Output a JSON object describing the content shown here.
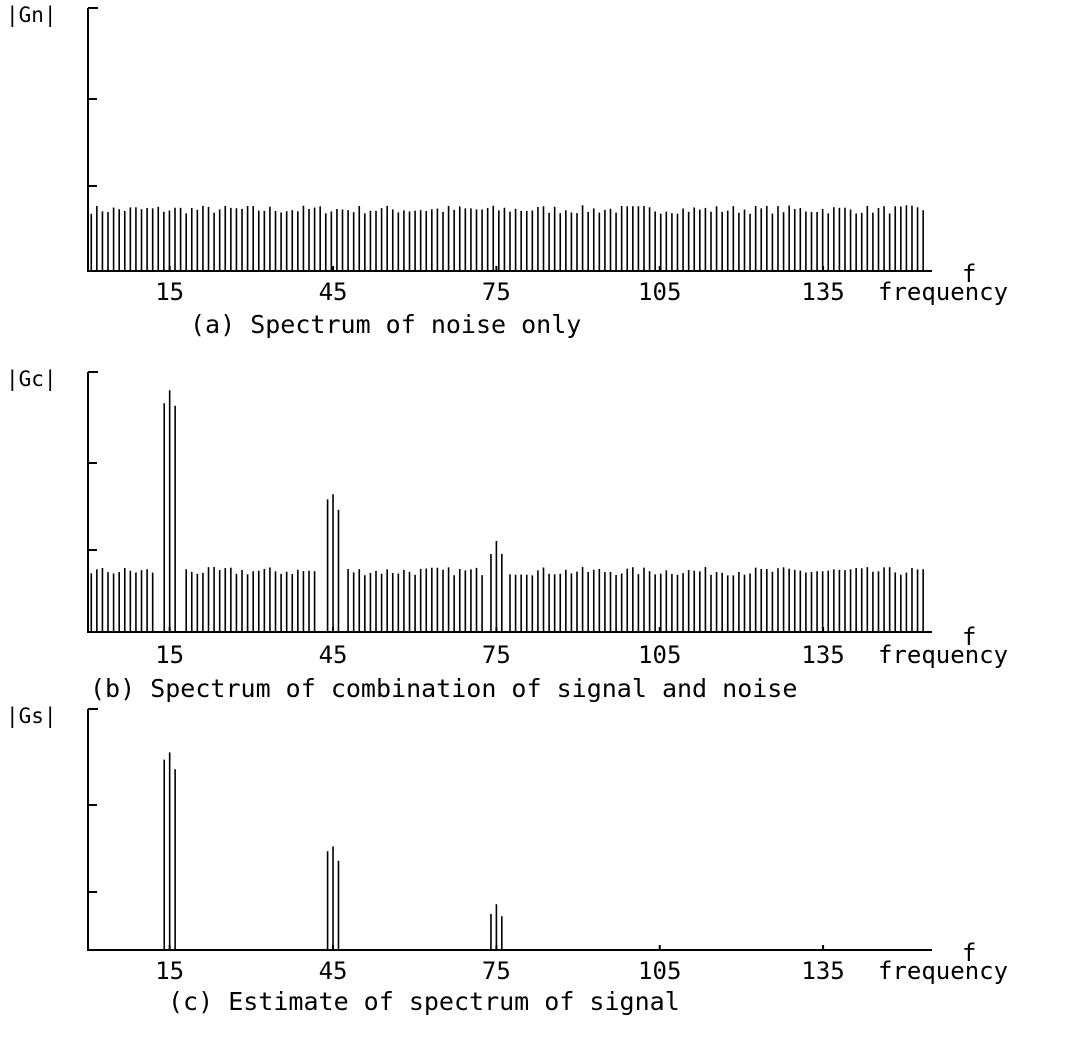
{
  "chart_data": [
    {
      "type": "bar",
      "ylabel": "|Gn|",
      "xlabel": "frequency",
      "axis_letter": "f",
      "xticks": [
        15,
        45,
        75,
        105,
        135
      ],
      "xlim": [
        0,
        155
      ],
      "ylim": [
        0,
        1.0
      ],
      "caption": "(a) Spectrum of noise only",
      "noise_level": 0.25,
      "peaks": []
    },
    {
      "type": "bar",
      "ylabel": "|Gc|",
      "xlabel": "frequency",
      "axis_letter": "f",
      "xticks": [
        15,
        45,
        75,
        105,
        135
      ],
      "xlim": [
        0,
        155
      ],
      "ylim": [
        0,
        1.0
      ],
      "caption": "(b) Spectrum of combination of signal and noise",
      "noise_level": 0.25,
      "peaks": [
        {
          "x": 14,
          "y": 0.88
        },
        {
          "x": 15,
          "y": 0.93
        },
        {
          "x": 16,
          "y": 0.87
        },
        {
          "x": 44,
          "y": 0.51
        },
        {
          "x": 45,
          "y": 0.53
        },
        {
          "x": 46,
          "y": 0.47
        },
        {
          "x": 74,
          "y": 0.3
        },
        {
          "x": 75,
          "y": 0.35
        },
        {
          "x": 76,
          "y": 0.3
        }
      ]
    },
    {
      "type": "bar",
      "ylabel": "|Gs|",
      "xlabel": "frequency",
      "axis_letter": "f",
      "xticks": [
        15,
        45,
        75,
        105,
        135
      ],
      "xlim": [
        0,
        155
      ],
      "ylim": [
        0,
        1.0
      ],
      "caption": "(c) Estimate of spectrum of signal",
      "noise_level": 0,
      "peaks": [
        {
          "x": 14,
          "y": 0.79
        },
        {
          "x": 15,
          "y": 0.82
        },
        {
          "x": 16,
          "y": 0.75
        },
        {
          "x": 44,
          "y": 0.41
        },
        {
          "x": 45,
          "y": 0.43
        },
        {
          "x": 46,
          "y": 0.37
        },
        {
          "x": 74,
          "y": 0.15
        },
        {
          "x": 75,
          "y": 0.19
        },
        {
          "x": 76,
          "y": 0.14
        }
      ]
    }
  ]
}
